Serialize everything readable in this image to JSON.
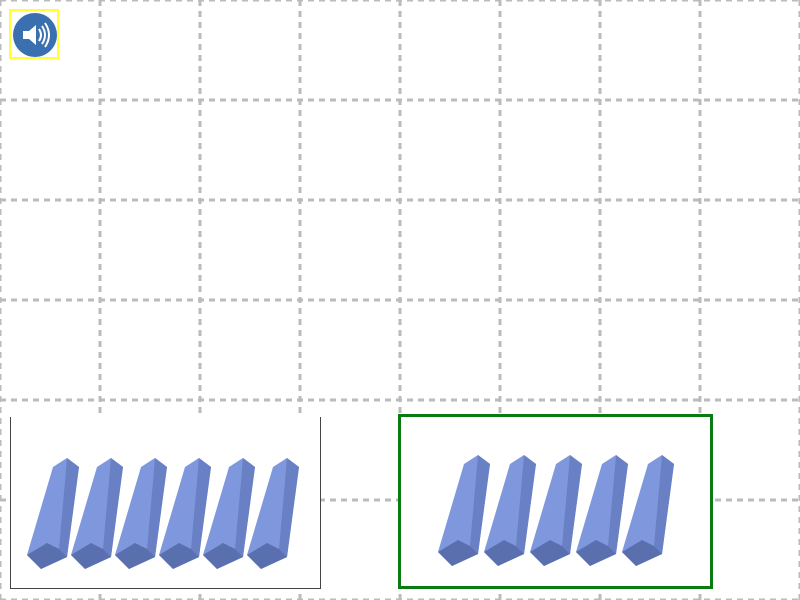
{
  "sound_button": {
    "icon": "speaker-icon",
    "highlight_color": "#ffff33",
    "icon_bg_color": "#3a6fb0"
  },
  "grid": {
    "line_color": "#bbbbbb",
    "style": "dashed"
  },
  "answer_options": [
    {
      "id": "option-left",
      "item": "blue-block",
      "count": 6,
      "selected": false
    },
    {
      "id": "option-right",
      "item": "blue-block",
      "count": 5,
      "selected": true,
      "selected_border_color": "#0a7a12"
    }
  ],
  "colors": {
    "block_face": "#7f98dd",
    "block_shade": "#6a80c4",
    "block_dark": "#5a6fae"
  }
}
